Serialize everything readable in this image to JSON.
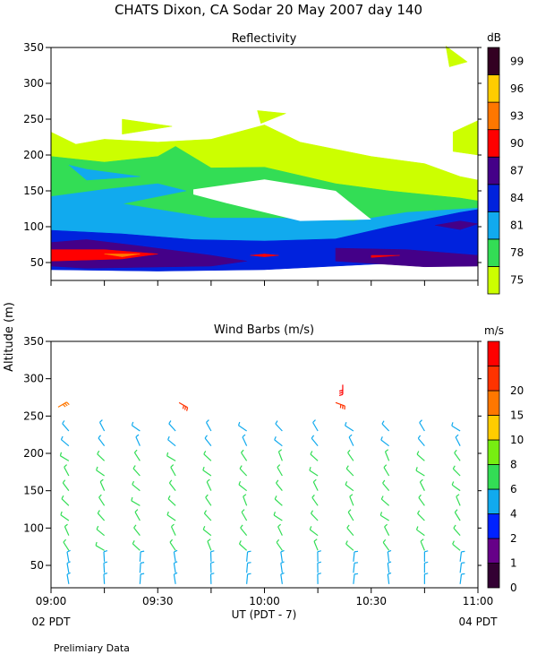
{
  "page": {
    "title": "CHATS Dixon, CA  Sodar  20 May 2007  day 140",
    "footer_note": "Prelimiary Data",
    "start_local": "02 PDT",
    "end_local": "04 PDT"
  },
  "chart_data": [
    {
      "type": "heatmap",
      "title": "Reflectivity",
      "xlabel": "",
      "ylabel": "Altitude (m)",
      "ylim": [
        25,
        350
      ],
      "xlim": [
        "09:00",
        "11:00"
      ],
      "y_ticks": [
        50,
        100,
        150,
        200,
        250,
        300,
        350
      ],
      "colorbar": {
        "unit": "dB",
        "levels": [
          75,
          78,
          81,
          84,
          87,
          90,
          93,
          96,
          99
        ],
        "colors": [
          "#ccff00",
          "#33dd55",
          "#11aaee",
          "#0022dd",
          "#440088",
          "#ff0000",
          "#ff7700",
          "#ffcc00",
          "#330022"
        ]
      },
      "regions": [
        {
          "level": 75,
          "polygons": [
            [
              [
                "09:00",
                232
              ],
              [
                "09:07",
                215
              ],
              [
                "09:15",
                222
              ],
              [
                "09:30",
                218
              ],
              [
                "09:45",
                222
              ],
              [
                "10:00",
                242
              ],
              [
                "10:10",
                218
              ],
              [
                "10:30",
                198
              ],
              [
                "10:45",
                188
              ],
              [
                "10:55",
                170
              ],
              [
                "11:00",
                165
              ],
              [
                "11:00",
                128
              ],
              [
                "10:40",
                130
              ],
              [
                "10:20",
                100
              ],
              [
                "10:10",
                112
              ],
              [
                "09:50",
                125
              ],
              [
                "09:30",
                150
              ],
              [
                "09:10",
                162
              ],
              [
                "09:00",
                172
              ]
            ],
            [
              [
                "09:20",
                250
              ],
              [
                "09:34",
                240
              ],
              [
                "09:20",
                229
              ]
            ],
            [
              [
                "09:58",
                262
              ],
              [
                "10:06",
                258
              ],
              [
                "09:59",
                244
              ]
            ],
            [
              [
                "10:51",
                352
              ],
              [
                "10:57",
                330
              ],
              [
                "10:52",
                323
              ]
            ],
            [
              [
                "10:53",
                232
              ],
              [
                "11:00",
                248
              ],
              [
                "11:00",
                200
              ],
              [
                "10:53",
                205
              ]
            ]
          ]
        },
        {
          "level": 78,
          "polygons": [
            [
              [
                "09:00",
                198
              ],
              [
                "09:15",
                190
              ],
              [
                "09:30",
                198
              ],
              [
                "09:35",
                212
              ],
              [
                "09:45",
                182
              ],
              [
                "10:00",
                183
              ],
              [
                "10:20",
                160
              ],
              [
                "10:35",
                150
              ],
              [
                "10:55",
                140
              ],
              [
                "11:00",
                136
              ],
              [
                "11:00",
                122
              ],
              [
                "10:40",
                108
              ],
              [
                "10:20",
                95
              ],
              [
                "10:00",
                90
              ],
              [
                "09:30",
                110
              ],
              [
                "09:00",
                118
              ]
            ]
          ]
        },
        {
          "level": 81,
          "polygons": [
            [
              [
                "09:00",
                142
              ],
              [
                "09:15",
                152
              ],
              [
                "09:30",
                160
              ],
              [
                "09:38",
                150
              ],
              [
                "09:20",
                132
              ],
              [
                "09:45",
                112
              ],
              [
                "10:05",
                112
              ],
              [
                "10:25",
                108
              ],
              [
                "10:40",
                120
              ],
              [
                "11:00",
                126
              ],
              [
                "11:00",
                52
              ],
              [
                "09:00",
                75
              ]
            ],
            [
              [
                "09:05",
                186
              ],
              [
                "09:10",
                180
              ],
              [
                "09:25",
                170
              ],
              [
                "09:10",
                165
              ]
            ]
          ]
        },
        {
          "level": 84,
          "polygons": [
            [
              [
                "09:00",
                95
              ],
              [
                "09:20",
                90
              ],
              [
                "09:40",
                82
              ],
              [
                "10:00",
                80
              ],
              [
                "10:20",
                83
              ],
              [
                "10:35",
                100
              ],
              [
                "10:55",
                120
              ],
              [
                "11:00",
                124
              ],
              [
                "11:00",
                56
              ],
              [
                "10:40",
                50
              ],
              [
                "10:00",
                40
              ],
              [
                "09:30",
                38
              ],
              [
                "09:00",
                40
              ]
            ]
          ]
        },
        {
          "level": 87,
          "polygons": [
            [
              [
                "09:00",
                78
              ],
              [
                "09:10",
                82
              ],
              [
                "09:25",
                73
              ],
              [
                "09:45",
                60
              ],
              [
                "09:55",
                52
              ],
              [
                "09:45",
                45
              ],
              [
                "09:10",
                42
              ],
              [
                "09:00",
                45
              ]
            ],
            [
              [
                "10:20",
                70
              ],
              [
                "10:40",
                68
              ],
              [
                "10:55",
                62
              ],
              [
                "11:00",
                60
              ],
              [
                "11:00",
                45
              ],
              [
                "10:45",
                44
              ],
              [
                "10:20",
                52
              ]
            ],
            [
              [
                "10:48",
                102
              ],
              [
                "10:55",
                108
              ],
              [
                "11:00",
                104
              ],
              [
                "10:55",
                96
              ]
            ]
          ]
        },
        {
          "level": 90,
          "polygons": [
            [
              [
                "09:00",
                68
              ],
              [
                "09:15",
                68
              ],
              [
                "09:30",
                62
              ],
              [
                "09:20",
                55
              ],
              [
                "09:00",
                52
              ]
            ],
            [
              [
                "10:00",
                62
              ],
              [
                "10:04",
                60
              ],
              [
                "10:00",
                58
              ],
              [
                "09:56",
                60
              ]
            ],
            [
              [
                "10:30",
                60
              ],
              [
                "10:38",
                60
              ],
              [
                "10:30",
                57
              ]
            ]
          ]
        },
        {
          "level": 93,
          "polygons": [
            [
              [
                "09:15",
                62
              ],
              [
                "09:25",
                62
              ],
              [
                "09:20",
                58
              ]
            ]
          ]
        }
      ],
      "blank_regions": [
        [
          [
            "09:40",
            152
          ],
          [
            "10:00",
            166
          ],
          [
            "10:20",
            150
          ],
          [
            "10:30",
            110
          ],
          [
            "10:10",
            108
          ],
          [
            "09:50",
            132
          ],
          [
            "09:40",
            145
          ]
        ]
      ]
    },
    {
      "type": "scatter",
      "title": "Wind Barbs (m/s)",
      "xlabel": "UT  (PDT - 7)",
      "ylabel": "Altitude (m)",
      "ylim": [
        20,
        350
      ],
      "xlim": [
        "09:00",
        "11:00"
      ],
      "x_ticks": [
        "09:00",
        "09:30",
        "10:00",
        "10:30",
        "11:00"
      ],
      "y_ticks": [
        50,
        100,
        150,
        200,
        250,
        300,
        350
      ],
      "colorbar": {
        "unit": "m/s",
        "levels": [
          0,
          1,
          2,
          4,
          6,
          8,
          10,
          15,
          20
        ],
        "colors": [
          "#330033",
          "#660088",
          "#0022ff",
          "#11aaee",
          "#33dd55",
          "#77ee11",
          "#ffcc00",
          "#ff7700",
          "#ff3300",
          "#ff0000"
        ]
      },
      "barb_times": [
        "09:05",
        "09:15",
        "09:25",
        "09:35",
        "09:45",
        "09:55",
        "10:05",
        "10:15",
        "10:25",
        "10:35",
        "10:45",
        "10:55"
      ],
      "barb_heights": [
        25,
        40,
        55,
        70,
        90,
        110,
        130,
        150,
        170,
        190,
        210,
        230
      ],
      "special_barbs": [
        {
          "time": "09:02",
          "height": 262,
          "speed": 14,
          "dir": 60
        },
        {
          "time": "09:36",
          "height": 268,
          "speed": 16,
          "dir": 120
        },
        {
          "time": "10:20",
          "height": 268,
          "speed": 16,
          "dir": 110
        },
        {
          "time": "10:22",
          "height": 292,
          "speed": 22,
          "dir": 180
        }
      ]
    }
  ]
}
